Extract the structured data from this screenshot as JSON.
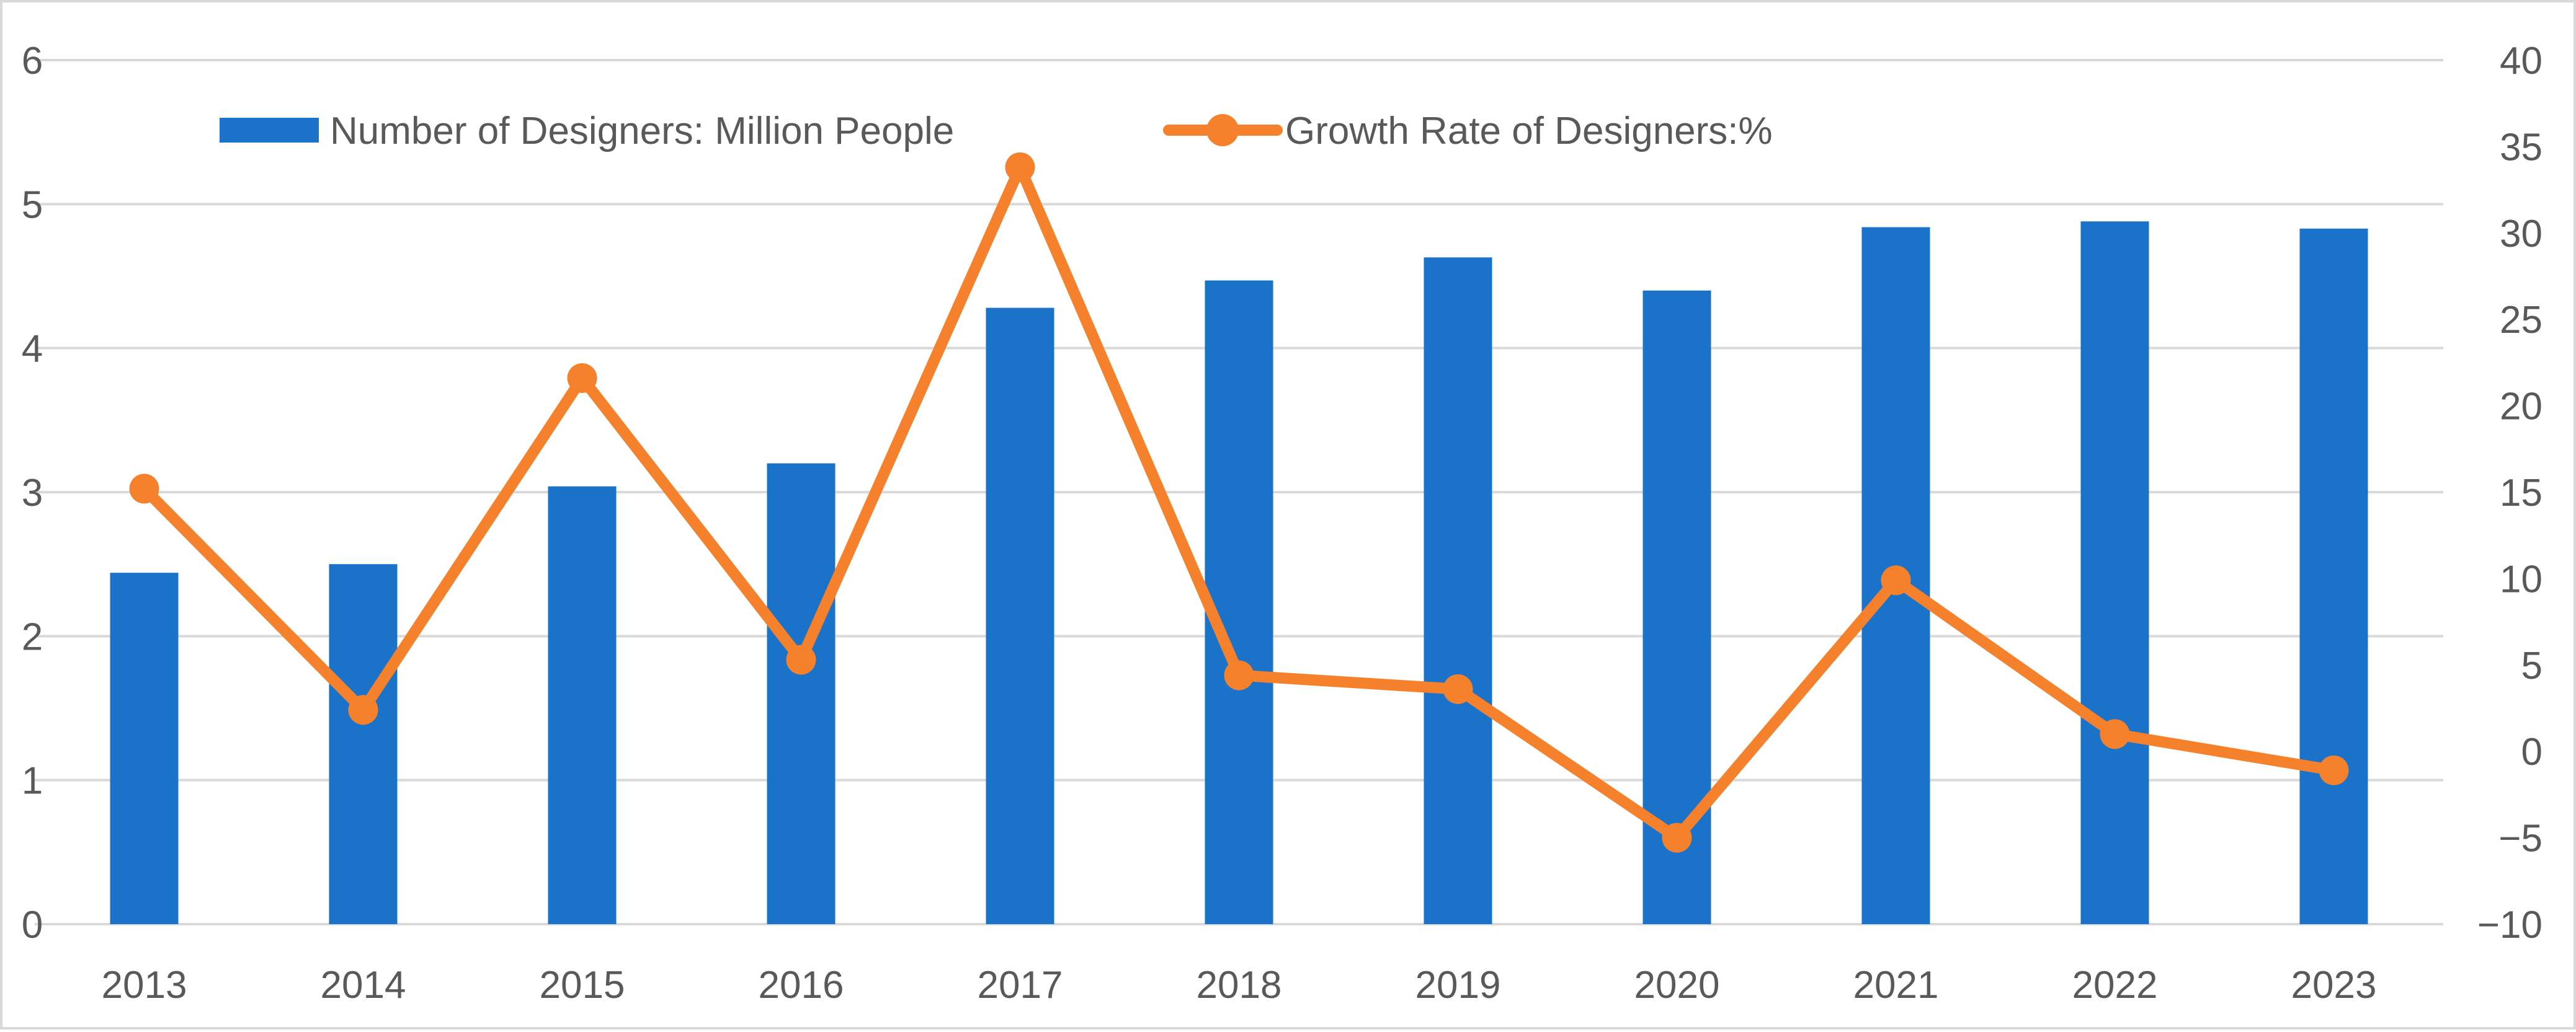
{
  "chart_data": {
    "type": "bar",
    "title": "",
    "xlabel": "",
    "ylabel": "",
    "categories": [
      "2013",
      "2014",
      "2015",
      "2016",
      "2017",
      "2018",
      "2019",
      "2020",
      "2021",
      "2022",
      "2023"
    ],
    "series": [
      {
        "name": "Number of Designers: Million People",
        "type": "bar",
        "axis": "left",
        "color": "#1a73c8",
        "values": [
          2.44,
          2.5,
          3.04,
          3.2,
          4.28,
          4.47,
          4.63,
          4.4,
          4.84,
          4.88,
          4.83
        ]
      },
      {
        "name": "Growth Rate of Designers:%",
        "type": "line",
        "axis": "right",
        "color": "#f6812c",
        "values": [
          15.2,
          2.4,
          21.6,
          5.3,
          33.8,
          4.4,
          3.6,
          -5.0,
          9.9,
          1.0,
          -1.1
        ]
      }
    ],
    "y_left": {
      "min": 0,
      "max": 6,
      "ticks": [
        "0",
        "1",
        "2",
        "3",
        "4",
        "5",
        "6"
      ]
    },
    "y_right": {
      "min": -10,
      "max": 40,
      "ticks": [
        "−10",
        "−5",
        "0",
        "5",
        "10",
        "15",
        "20",
        "25",
        "30",
        "35",
        "40"
      ]
    },
    "grid": true,
    "legend_position": "top-left"
  }
}
